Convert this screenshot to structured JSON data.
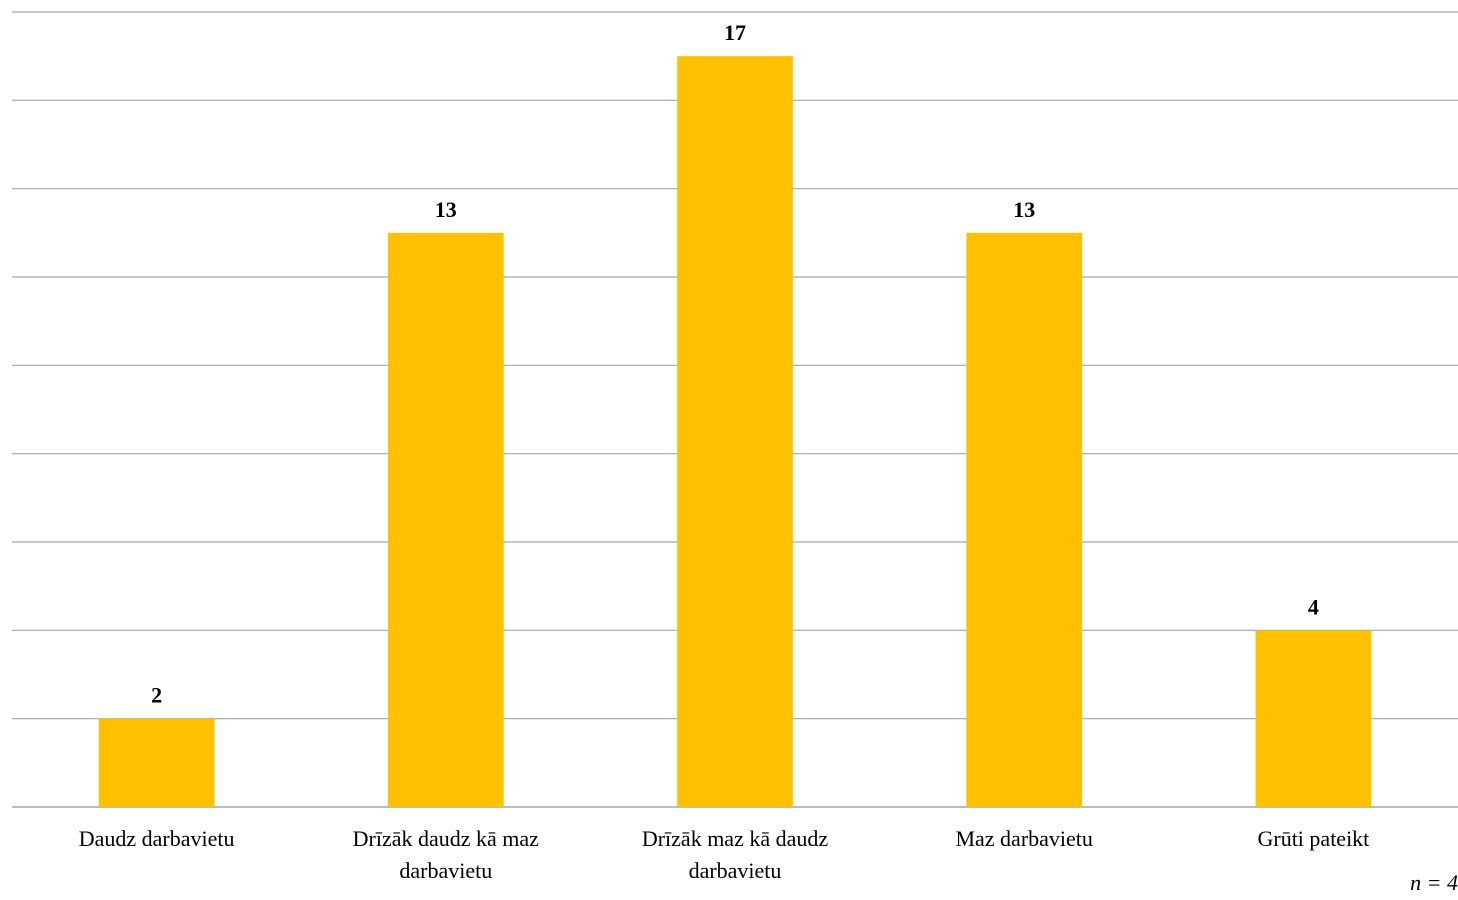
{
  "chart_data": {
    "type": "bar",
    "categories": [
      [
        "Daudz darbavietu"
      ],
      [
        "Drīzāk daudz kā maz",
        "darbavietu"
      ],
      [
        "Drīzāk maz kā daudz",
        "darbavietu"
      ],
      [
        "Maz darbavietu"
      ],
      [
        "Grūti pateikt"
      ]
    ],
    "values": [
      2,
      13,
      17,
      13,
      4
    ],
    "ylim": [
      0,
      18
    ],
    "grid": true,
    "bar_color": "#FFC000",
    "grid_color": "#A6A6A6"
  },
  "note": "n = 4"
}
